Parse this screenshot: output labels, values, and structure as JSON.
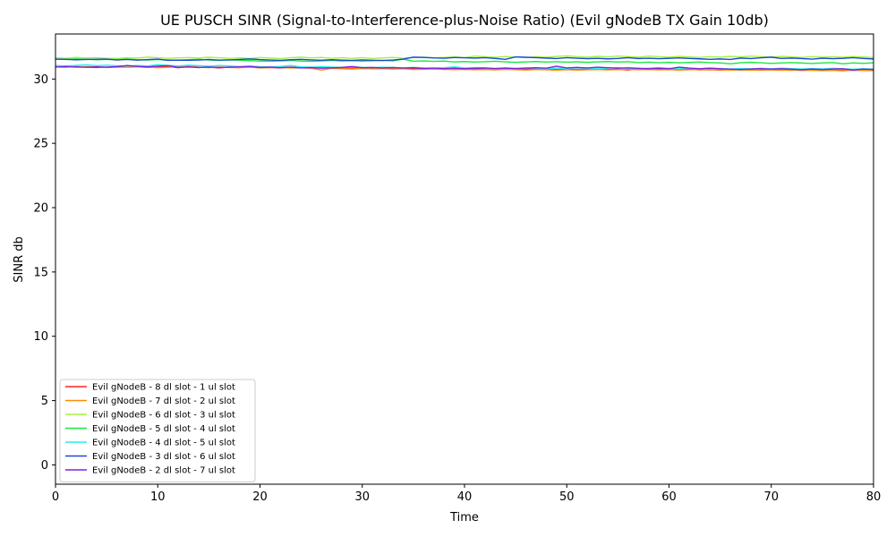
{
  "chart_data": {
    "type": "line",
    "title": "UE PUSCH SINR (Signal-to-Interference-plus-Noise Ratio) (Evil gNodeB TX Gain 10db)",
    "xlabel": "Time",
    "ylabel": "SINR db",
    "xlim": [
      0,
      80
    ],
    "ylim": [
      -1.5,
      33.5
    ],
    "xticks": [
      0,
      10,
      20,
      30,
      40,
      50,
      60,
      70,
      80
    ],
    "yticks": [
      0,
      5,
      10,
      15,
      20,
      25,
      30
    ],
    "grid": false,
    "legend_position": "lower-left",
    "x": [
      0,
      1,
      2,
      3,
      4,
      5,
      6,
      7,
      8,
      9,
      10,
      11,
      12,
      13,
      14,
      15,
      16,
      17,
      18,
      19,
      20,
      21,
      22,
      23,
      24,
      25,
      26,
      27,
      28,
      29,
      30,
      31,
      32,
      33,
      34,
      35,
      36,
      37,
      38,
      39,
      40,
      41,
      42,
      43,
      44,
      45,
      46,
      47,
      48,
      49,
      50,
      51,
      52,
      53,
      54,
      55,
      56,
      57,
      58,
      59,
      60,
      61,
      62,
      63,
      64,
      65,
      66,
      67,
      68,
      69,
      70,
      71,
      72,
      73,
      74,
      75,
      76,
      77,
      78,
      79,
      80
    ],
    "series": [
      {
        "name": "Evil gNodeB - 8 dl slot - 1 ul slot",
        "color": "#ff2020",
        "values": [
          30.95,
          30.92,
          30.97,
          30.93,
          30.9,
          30.92,
          30.94,
          30.99,
          30.95,
          30.91,
          30.93,
          30.98,
          30.88,
          31.02,
          30.9,
          30.92,
          30.87,
          30.93,
          30.91,
          30.95,
          30.88,
          30.9,
          30.87,
          30.92,
          30.88,
          30.85,
          30.89,
          30.86,
          30.84,
          30.87,
          30.85,
          30.82,
          30.84,
          30.81,
          30.83,
          30.79,
          30.78,
          30.8,
          30.76,
          30.79,
          30.75,
          30.77,
          30.79,
          30.74,
          30.78,
          30.75,
          30.76,
          30.8,
          30.77,
          30.74,
          30.76,
          30.73,
          30.75,
          30.77,
          30.74,
          30.76,
          30.7,
          30.82,
          30.77,
          30.74,
          30.76,
          30.72,
          30.75,
          30.71,
          30.73,
          30.7,
          30.74,
          30.71,
          30.73,
          30.7,
          30.72,
          30.69,
          30.71,
          30.68,
          30.7,
          30.67,
          30.69,
          30.66,
          30.7,
          30.68,
          30.67
        ]
      },
      {
        "name": "Evil gNodeB - 7 dl slot - 2 ul slot",
        "color": "#ff8c00",
        "values": [
          30.98,
          30.95,
          30.92,
          30.96,
          30.94,
          30.9,
          30.93,
          30.91,
          30.95,
          30.92,
          30.88,
          30.91,
          30.94,
          31.05,
          30.92,
          30.89,
          30.93,
          30.9,
          30.88,
          30.92,
          30.87,
          30.89,
          30.91,
          30.86,
          30.88,
          30.84,
          30.7,
          30.83,
          30.8,
          30.78,
          30.82,
          30.79,
          30.81,
          30.77,
          30.8,
          30.74,
          30.76,
          30.78,
          30.75,
          30.73,
          30.76,
          30.72,
          30.74,
          30.71,
          30.75,
          30.73,
          30.7,
          30.74,
          30.72,
          30.69,
          30.73,
          30.7,
          30.72,
          30.74,
          30.71,
          30.73,
          30.75,
          30.72,
          30.74,
          30.71,
          30.73,
          30.7,
          30.72,
          30.74,
          30.71,
          30.73,
          30.7,
          30.72,
          30.69,
          30.71,
          30.73,
          30.7,
          30.68,
          30.71,
          30.69,
          30.67,
          30.7,
          30.72,
          30.68,
          30.7,
          30.69
        ]
      },
      {
        "name": "Evil gNodeB - 6 dl slot - 3 ul slot",
        "color": "#a8f040",
        "values": [
          31.65,
          31.62,
          31.68,
          31.64,
          31.66,
          31.62,
          31.6,
          31.65,
          31.63,
          31.7,
          31.66,
          31.61,
          31.64,
          31.67,
          31.63,
          31.69,
          31.65,
          31.61,
          31.64,
          31.6,
          31.67,
          31.63,
          31.59,
          31.66,
          31.7,
          31.64,
          31.68,
          31.62,
          31.65,
          31.61,
          31.66,
          31.6,
          31.64,
          31.68,
          31.62,
          31.66,
          31.7,
          31.64,
          31.68,
          31.72,
          31.66,
          31.78,
          31.73,
          31.69,
          31.75,
          31.71,
          31.67,
          31.73,
          31.69,
          31.76,
          31.8,
          31.74,
          31.7,
          31.76,
          31.72,
          31.78,
          31.74,
          31.7,
          31.78,
          31.74,
          31.7,
          31.76,
          31.72,
          31.68,
          31.74,
          31.7,
          31.76,
          31.72,
          31.78,
          31.74,
          31.7,
          31.76,
          31.72,
          31.68,
          31.74,
          31.7,
          31.73,
          31.69,
          31.75,
          31.71,
          31.68
        ]
      },
      {
        "name": "Evil gNodeB - 5 dl slot - 4 ul slot",
        "color": "#18e840",
        "values": [
          31.55,
          31.52,
          31.56,
          31.54,
          31.5,
          31.53,
          31.51,
          31.55,
          31.5,
          31.48,
          31.52,
          31.49,
          31.46,
          31.5,
          31.53,
          31.48,
          31.45,
          31.49,
          31.46,
          31.43,
          31.4,
          31.38,
          31.41,
          31.44,
          31.4,
          31.37,
          31.41,
          31.44,
          31.4,
          31.43,
          31.39,
          31.42,
          31.45,
          31.41,
          31.55,
          31.38,
          31.41,
          31.37,
          31.4,
          31.33,
          31.36,
          31.32,
          31.35,
          31.38,
          31.34,
          31.3,
          31.33,
          31.36,
          31.32,
          31.35,
          31.31,
          31.34,
          31.3,
          31.33,
          31.36,
          31.32,
          31.35,
          31.28,
          31.31,
          31.27,
          31.3,
          31.26,
          31.29,
          31.32,
          31.28,
          31.25,
          31.18,
          31.27,
          31.3,
          31.26,
          31.22,
          31.25,
          31.28,
          31.24,
          31.21,
          31.25,
          31.28,
          31.18,
          31.25,
          31.22,
          31.26
        ]
      },
      {
        "name": "Evil gNodeB - 4 dl slot - 5 ul slot",
        "color": "#20f0f0",
        "values": [
          31.05,
          31.02,
          31.06,
          31.1,
          31.04,
          31.08,
          31.03,
          31.0,
          31.05,
          31.02,
          31.12,
          31.06,
          31.02,
          31.08,
          31.04,
          31.0,
          31.05,
          31.02,
          30.96,
          31.0,
          30.96,
          30.94,
          30.98,
          31.05,
          30.95,
          30.92,
          30.96,
          30.93,
          30.9,
          30.94,
          30.91,
          30.88,
          30.92,
          30.89,
          30.86,
          30.9,
          30.87,
          30.84,
          30.88,
          30.95,
          30.86,
          30.89,
          30.85,
          30.82,
          30.86,
          30.83,
          30.87,
          30.84,
          30.81,
          30.85,
          30.82,
          30.86,
          30.83,
          30.8,
          30.84,
          30.88,
          30.84,
          30.8,
          30.84,
          30.87,
          30.83,
          30.8,
          30.84,
          30.81,
          30.85,
          30.82,
          30.78,
          30.82,
          30.79,
          30.83,
          30.8,
          30.84,
          30.81,
          30.78,
          30.82,
          30.79,
          30.83,
          30.8,
          30.76,
          30.8,
          30.78
        ]
      },
      {
        "name": "Evil gNodeB - 3 dl slot - 6 ul slot",
        "color": "#1848d8",
        "values": [
          31.55,
          31.53,
          31.5,
          31.52,
          31.54,
          31.55,
          31.48,
          31.52,
          31.47,
          31.51,
          31.55,
          31.45,
          31.47,
          31.46,
          31.48,
          31.52,
          31.47,
          31.49,
          31.52,
          31.56,
          31.51,
          31.48,
          31.45,
          31.5,
          31.53,
          31.49,
          31.46,
          31.5,
          31.47,
          31.45,
          31.49,
          31.46,
          31.44,
          31.48,
          31.55,
          31.7,
          31.68,
          31.64,
          31.62,
          31.67,
          31.65,
          31.63,
          31.66,
          31.6,
          31.53,
          31.72,
          31.69,
          31.66,
          31.63,
          31.59,
          31.66,
          31.62,
          31.58,
          31.61,
          31.57,
          31.6,
          31.66,
          31.59,
          31.62,
          31.58,
          31.61,
          31.64,
          31.6,
          31.57,
          31.53,
          31.56,
          31.52,
          31.63,
          31.59,
          31.65,
          31.7,
          31.6,
          31.63,
          31.59,
          31.55,
          31.62,
          31.58,
          31.61,
          31.66,
          31.6,
          31.56
        ]
      },
      {
        "name": "Evil gNodeB - 2 dl slot - 7 ul slot",
        "color": "#8020e0",
        "values": [
          30.93,
          30.97,
          30.94,
          30.91,
          30.95,
          30.92,
          30.96,
          31.05,
          30.98,
          30.95,
          31.0,
          31.04,
          30.9,
          30.94,
          30.9,
          30.93,
          30.89,
          30.92,
          30.95,
          30.98,
          30.9,
          30.93,
          30.88,
          30.92,
          30.86,
          30.89,
          30.84,
          30.87,
          30.9,
          30.97,
          30.88,
          30.9,
          30.86,
          30.89,
          30.85,
          30.88,
          30.82,
          30.85,
          30.81,
          30.84,
          30.8,
          30.83,
          30.86,
          30.82,
          30.85,
          30.81,
          30.84,
          30.88,
          30.84,
          31.0,
          30.86,
          30.9,
          30.86,
          30.92,
          30.88,
          30.84,
          30.87,
          30.83,
          30.8,
          30.84,
          30.8,
          30.92,
          30.84,
          30.8,
          30.84,
          30.8,
          30.77,
          30.74,
          30.78,
          30.81,
          30.77,
          30.8,
          30.76,
          30.73,
          30.77,
          30.74,
          30.77,
          30.8,
          30.7,
          30.77,
          30.74
        ]
      }
    ]
  }
}
